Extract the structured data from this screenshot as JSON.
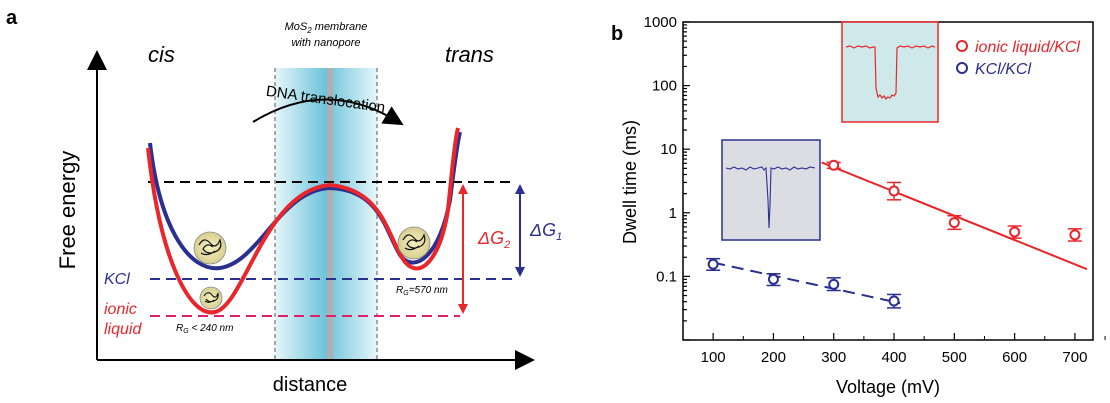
{
  "panel_a": {
    "letter": "a",
    "cis_label": "cis",
    "trans_label": "trans",
    "membrane_label_line1": "MoS",
    "membrane_label_sub": "2",
    "membrane_label_line1_rest": " membrane",
    "membrane_label_line2": "with nanopore",
    "translocation_label": "DNA translocation",
    "y_axis_label": "Free energy",
    "x_axis_label": "distance",
    "kcl_label": "KCl",
    "ionic_liquid_line1": "ionic",
    "ionic_liquid_line2": "liquid",
    "delta_g2": "ΔG",
    "delta_g2_sub": "2",
    "delta_g1": "ΔG",
    "delta_g1_sub": "1",
    "rg_left_prefix": "R",
    "rg_left_sub": "G",
    "rg_left_value": " < 240 nm",
    "rg_right_prefix": "R",
    "rg_right_sub": "G",
    "rg_right_value": "=570 nm",
    "colors": {
      "red": "#e8262b",
      "blue": "#2b2f8f",
      "pink": "#e0206a",
      "cyan": "#9ad7e6"
    }
  },
  "panel_b": {
    "letter": "b",
    "chart_data": {
      "type": "scatter",
      "xlabel": "Voltage (mV)",
      "ylabel": "Dwell time (ms)",
      "xlim": [
        50,
        730
      ],
      "ylim": [
        0.01,
        1000
      ],
      "yscale": "log",
      "x_ticks": [
        "100",
        "200",
        "300",
        "400",
        "500",
        "600",
        "700"
      ],
      "y_ticks": [
        "0.1",
        "1",
        "10",
        "100",
        "1000"
      ],
      "legend_position": "top-right",
      "series": [
        {
          "name": "ionic liquid/KCl",
          "color": "#e8262b",
          "x": [
            300,
            400,
            500,
            600,
            700
          ],
          "y": [
            5.6,
            2.2,
            0.7,
            0.5,
            0.45
          ],
          "err_low": [
            5.0,
            1.6,
            0.55,
            0.4,
            0.36
          ],
          "err_high": [
            6.2,
            3.0,
            0.9,
            0.62,
            0.56
          ],
          "fit": {
            "x": [
              280,
              720
            ],
            "y": [
              6.2,
              0.13
            ],
            "style": "solid"
          }
        },
        {
          "name": "KCl/KCl",
          "color": "#2b2f8f",
          "x": [
            100,
            200,
            300,
            400
          ],
          "y": [
            0.155,
            0.09,
            0.075,
            0.041
          ],
          "err_low": [
            0.125,
            0.072,
            0.06,
            0.032
          ],
          "err_high": [
            0.19,
            0.11,
            0.095,
            0.052
          ],
          "fit": {
            "x": [
              100,
              410
            ],
            "y": [
              0.165,
              0.038
            ],
            "style": "dashed"
          }
        }
      ]
    }
  }
}
